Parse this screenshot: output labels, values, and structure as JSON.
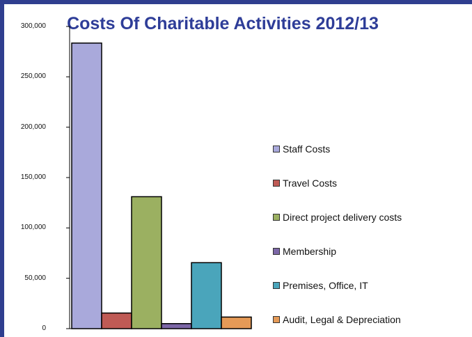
{
  "chart_data": {
    "type": "bar",
    "title": "Costs Of Charitable Activities 2012/13",
    "categories": [
      "Staff Costs",
      "Travel Costs",
      "Direct project delivery costs",
      "Membership",
      "Premises, Office, IT",
      "Audit, Legal & Depreciation"
    ],
    "values": [
      283500,
      15500,
      131000,
      5000,
      65500,
      11500
    ],
    "colors": [
      "#a9a9db",
      "#bf5a55",
      "#9bb061",
      "#7c67a7",
      "#4aa5bb",
      "#e59a57"
    ],
    "ylim": [
      0,
      300000
    ],
    "yticks": [
      "0",
      "50,000",
      "100,000",
      "150,000",
      "200,000",
      "250,000",
      "300,000"
    ],
    "legend_position": "right",
    "grid": false
  }
}
